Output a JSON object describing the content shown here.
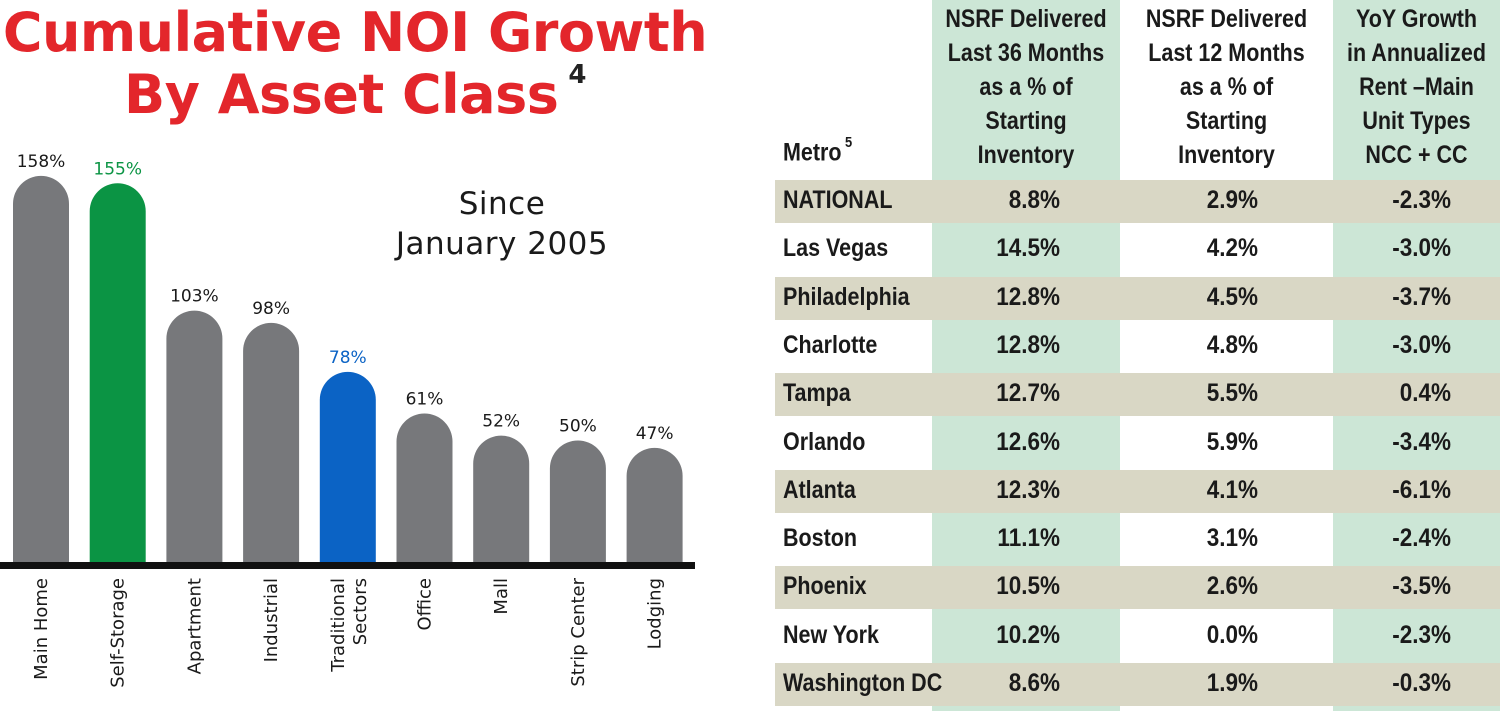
{
  "chart_title": {
    "line1": "Cumulative NOI Growth",
    "line2": "By Asset Class",
    "footnote": "4"
  },
  "subtitle": {
    "line1": "Since",
    "line2": "January 2005"
  },
  "colors": {
    "title": "#e3262b",
    "bar_default": "#77787b",
    "bar_self_storage": "#0b9444",
    "bar_traditional": "#0b63c5",
    "table_green": "#cce6d6",
    "table_tan": "#d9d7c5"
  },
  "chart_data": {
    "type": "bar",
    "title": "Cumulative NOI Growth By Asset Class",
    "annotation": "Since January 2005",
    "categories": [
      "Main Home",
      "Self-Storage",
      "Apartment",
      "Industrial",
      "Traditional Sectors",
      "Office",
      "Mall",
      "Strip Center",
      "Lodging"
    ],
    "category_lines": [
      [
        "Main Home"
      ],
      [
        "Self-Storage"
      ],
      [
        "Apartment"
      ],
      [
        "Industrial"
      ],
      [
        "Traditional",
        "Sectors"
      ],
      [
        "Office"
      ],
      [
        "Mall"
      ],
      [
        "Strip Center"
      ],
      [
        "Lodging"
      ]
    ],
    "values": [
      158,
      155,
      103,
      98,
      78,
      61,
      52,
      50,
      47
    ],
    "value_labels": [
      "158%",
      "155%",
      "103%",
      "98%",
      "78%",
      "61%",
      "52%",
      "50%",
      "47%"
    ],
    "highlight": {
      "Self-Storage": "#0b9444",
      "Traditional Sectors": "#0b63c5"
    },
    "unit": "%",
    "ylim": [
      0,
      160
    ],
    "xlabel": "",
    "ylabel": "",
    "grid": false
  },
  "table": {
    "headers": {
      "metro": "Metro",
      "metro_footnote": "5",
      "col1": [
        "NSRF Delivered",
        "Last 36 Months",
        "as a % of",
        "Starting",
        "Inventory"
      ],
      "col2": [
        "NSRF Delivered",
        "Last 12 Months",
        "as a % of",
        "Starting",
        "Inventory"
      ],
      "col3": [
        "YoY Growth",
        "in Annualized",
        "Rent –Main",
        "Unit Types",
        "NCC + CC"
      ]
    },
    "rows": [
      {
        "metro": "NATIONAL",
        "d36": "8.8%",
        "d12": "2.9%",
        "yoy": "-2.3%"
      },
      {
        "metro": "Las Vegas",
        "d36": "14.5%",
        "d12": "4.2%",
        "yoy": "-3.0%"
      },
      {
        "metro": "Philadelphia",
        "d36": "12.8%",
        "d12": "4.5%",
        "yoy": "-3.7%"
      },
      {
        "metro": "Charlotte",
        "d36": "12.8%",
        "d12": "4.8%",
        "yoy": "-3.0%"
      },
      {
        "metro": "Tampa",
        "d36": "12.7%",
        "d12": "5.5%",
        "yoy": "0.4%"
      },
      {
        "metro": "Orlando",
        "d36": "12.6%",
        "d12": "5.9%",
        "yoy": "-3.4%"
      },
      {
        "metro": "Atlanta",
        "d36": "12.3%",
        "d12": "4.1%",
        "yoy": "-6.1%"
      },
      {
        "metro": "Boston",
        "d36": "11.1%",
        "d12": "3.1%",
        "yoy": "-2.4%"
      },
      {
        "metro": "Phoenix",
        "d36": "10.5%",
        "d12": "2.6%",
        "yoy": "-3.5%"
      },
      {
        "metro": "New York",
        "d36": "10.2%",
        "d12": "0.0%",
        "yoy": "-2.3%"
      },
      {
        "metro": "Washington DC",
        "d36": "8.6%",
        "d12": "1.9%",
        "yoy": "-0.3%"
      }
    ]
  }
}
